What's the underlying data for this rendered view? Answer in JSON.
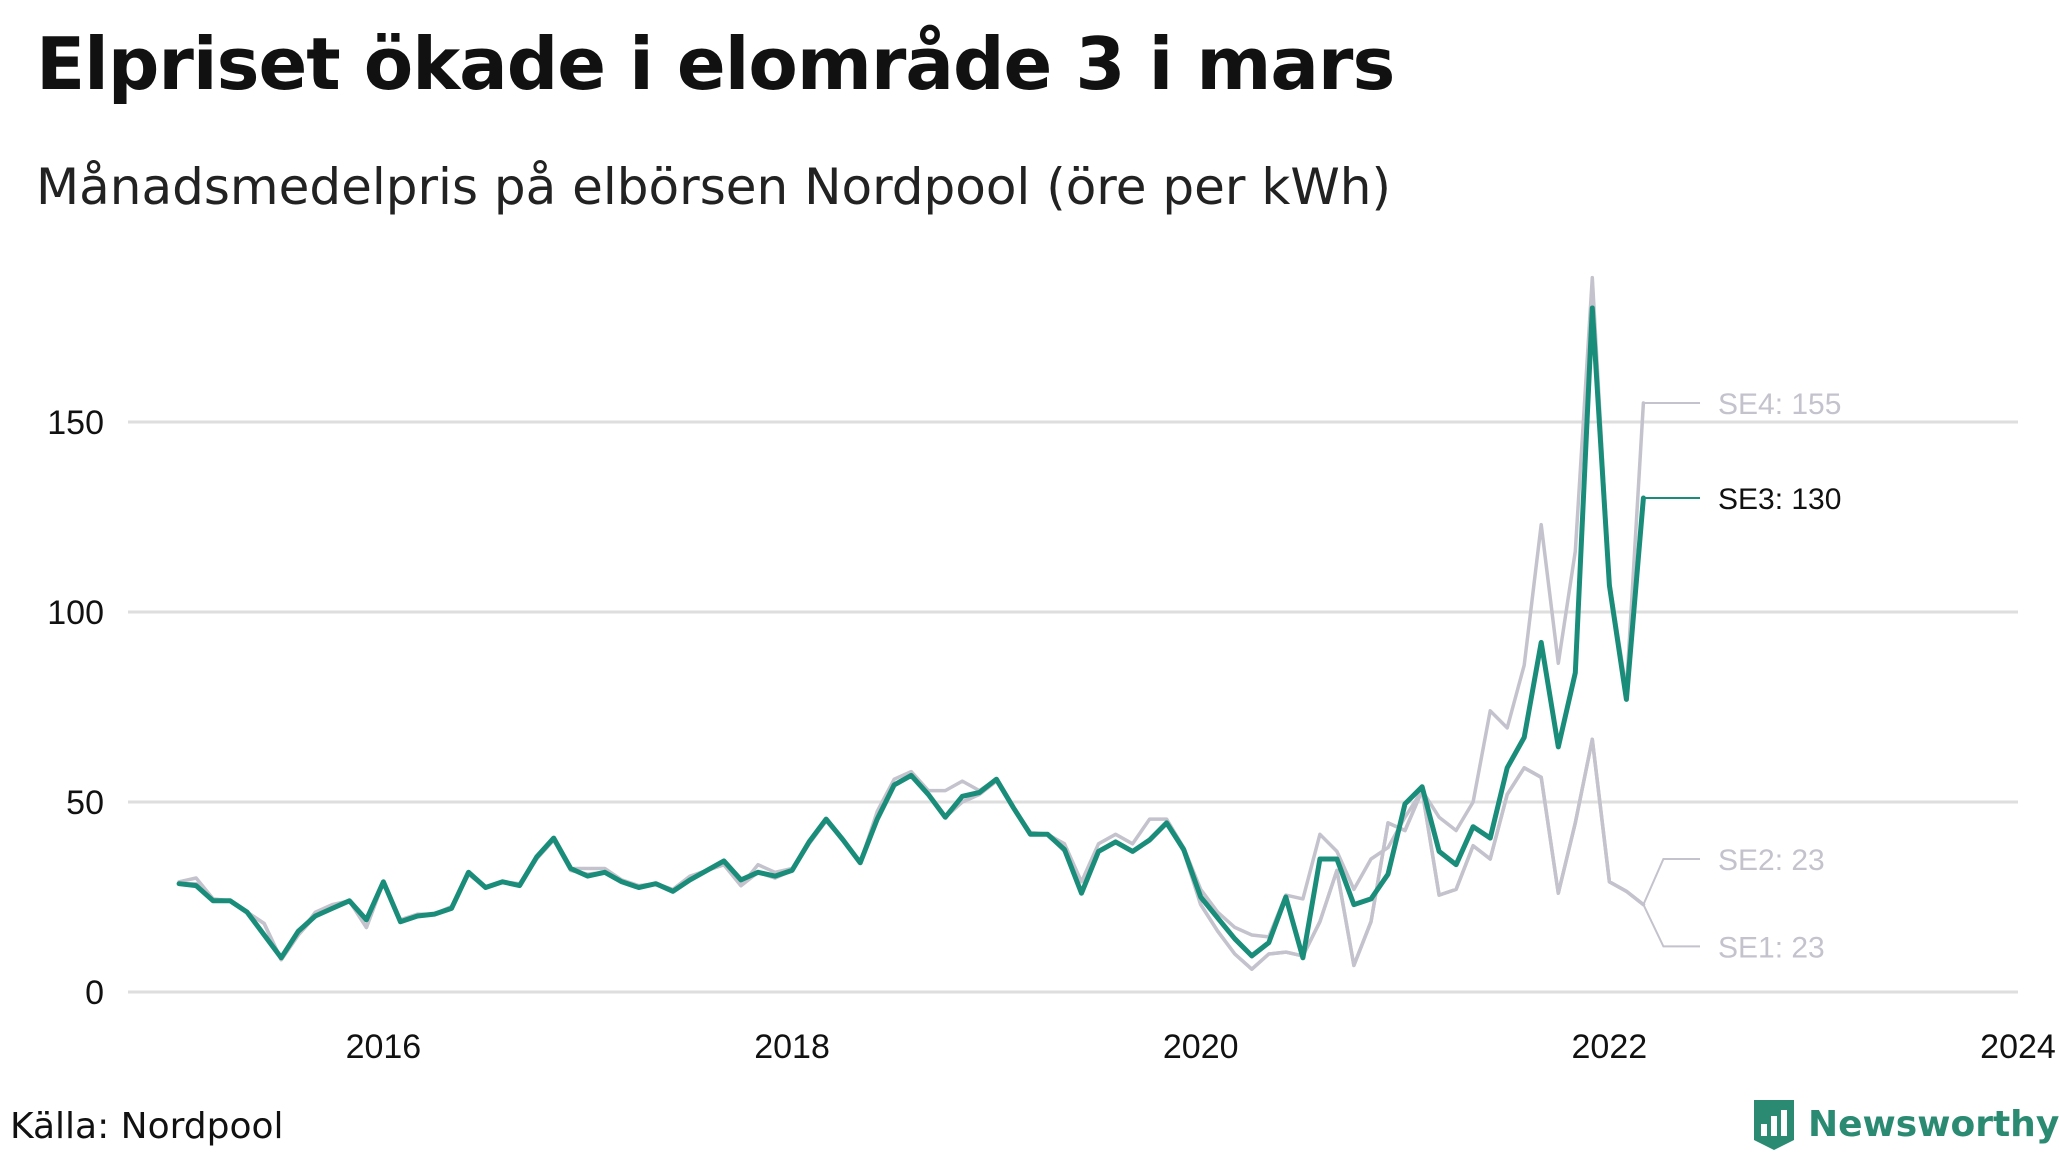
{
  "title": "Elpriset ökade i elområde 3 i mars",
  "subtitle": "Månadsmedelpris på elbörsen Nordpool (öre per kWh)",
  "source": "Källa: Nordpool",
  "brand": {
    "name": "Newsworthy",
    "color": "#2a8a72"
  },
  "colors": {
    "highlight": "#1a8d7a",
    "muted": "#c4c2cc",
    "grid": "#dedede"
  },
  "chart_data": {
    "type": "line",
    "title": "Elpriset ökade i elområde 3 i mars",
    "ylabel": "öre per kWh",
    "xlim": [
      2014.75,
      2024.0
    ],
    "ylim": [
      0,
      190
    ],
    "yticks": [
      0,
      50,
      100,
      150
    ],
    "xticks": [
      2016,
      2018,
      2020,
      2022,
      2024
    ],
    "start": 2015.0,
    "step_months": 1,
    "series": [
      {
        "name": "SE3",
        "label": "SE3: 130",
        "highlight": true,
        "values": [
          28.5,
          28,
          24,
          24,
          21,
          15,
          9,
          16,
          20,
          22,
          24,
          19,
          29,
          18.5,
          20,
          20.5,
          22,
          31.5,
          27.5,
          29,
          28,
          35.5,
          40.5,
          32.5,
          30.5,
          31.5,
          29,
          27.5,
          28.5,
          26.5,
          29.5,
          32,
          34.5,
          29.5,
          31.5,
          30.5,
          32,
          39.5,
          45.5,
          40,
          34,
          45.5,
          54.5,
          57,
          52,
          46,
          51.5,
          52.5,
          56,
          48.5,
          41.5,
          41.5,
          37.5,
          26,
          37,
          39.5,
          37,
          40,
          44.5,
          37.5,
          25,
          19.5,
          14,
          9.5,
          13,
          25,
          9,
          35,
          35,
          23,
          24.5,
          31,
          49.5,
          54,
          37,
          33.5,
          43.5,
          40.5,
          59,
          67,
          92,
          64.5,
          84,
          180,
          107,
          77,
          130
        ]
      },
      {
        "name": "SE4",
        "label": "SE4: 155",
        "highlight": false,
        "values": [
          29,
          30,
          24.5,
          24,
          21,
          18,
          8.5,
          15,
          21,
          23,
          24,
          17,
          29,
          19,
          20.5,
          20.5,
          22.5,
          31.5,
          27.5,
          29,
          28.5,
          35.5,
          40.5,
          32.5,
          32.5,
          32.5,
          29.5,
          28,
          28.5,
          27,
          30.5,
          32,
          33.5,
          28,
          33.5,
          31.5,
          32.5,
          39.5,
          45,
          40,
          34,
          47.5,
          56,
          58,
          53,
          53,
          55.5,
          53,
          56,
          48.5,
          42,
          41.5,
          39,
          29,
          39,
          41.5,
          39,
          45.5,
          45.5,
          38,
          27,
          21,
          17,
          15,
          14.5,
          25.5,
          24.5,
          41.5,
          37,
          27,
          35,
          38,
          46,
          53,
          46,
          42.5,
          50,
          74,
          69.5,
          86,
          123,
          86.5,
          116,
          188,
          108,
          79.5,
          155
        ]
      },
      {
        "name": "SE2",
        "label": "SE2: 23",
        "highlight": false,
        "values": [
          28.5,
          28.5,
          24,
          24,
          21,
          18,
          8.5,
          15,
          20,
          22,
          24,
          17,
          29,
          18.5,
          20,
          20.5,
          22,
          31,
          27.5,
          29,
          28,
          35,
          40,
          32,
          31,
          31.5,
          29,
          27.5,
          28.5,
          26.5,
          29.5,
          32,
          33.5,
          28,
          31.5,
          30,
          32,
          39,
          45,
          40,
          34,
          45.5,
          54.5,
          57,
          52,
          46,
          50,
          52,
          55.5,
          48.5,
          41.5,
          41.5,
          37,
          26,
          37,
          39.5,
          37,
          40,
          44.5,
          37,
          23,
          16,
          10,
          6,
          10,
          10.5,
          9.5,
          18.5,
          32,
          7,
          18.5,
          44.5,
          42.5,
          53,
          25.5,
          27,
          38.5,
          35,
          52,
          59,
          56.5,
          26,
          44.5,
          66.5,
          29,
          26.5,
          23
        ]
      },
      {
        "name": "SE1",
        "label": "SE1: 23",
        "highlight": false,
        "values": [
          28.5,
          28.5,
          24,
          24,
          21,
          18,
          8.5,
          15,
          20,
          22,
          24,
          17,
          29,
          18.5,
          20,
          20.5,
          22,
          31,
          27.5,
          29,
          28,
          35,
          40,
          32,
          31,
          31.5,
          29,
          27.5,
          28.5,
          26.5,
          29.5,
          32,
          33.5,
          28,
          31.5,
          30,
          32,
          39,
          45,
          40,
          34,
          45.5,
          54.5,
          57,
          52,
          46,
          50,
          52,
          55.5,
          48.5,
          41.5,
          41.5,
          37,
          26,
          37,
          39.5,
          37,
          40,
          44.5,
          37,
          23,
          16,
          10,
          6,
          10,
          10.5,
          9.5,
          18.5,
          32,
          7,
          18.5,
          44.5,
          42.5,
          53,
          25.5,
          27,
          38.5,
          35,
          52,
          59,
          56.5,
          26,
          44.5,
          66.5,
          29,
          26.5,
          23
        ]
      }
    ]
  }
}
